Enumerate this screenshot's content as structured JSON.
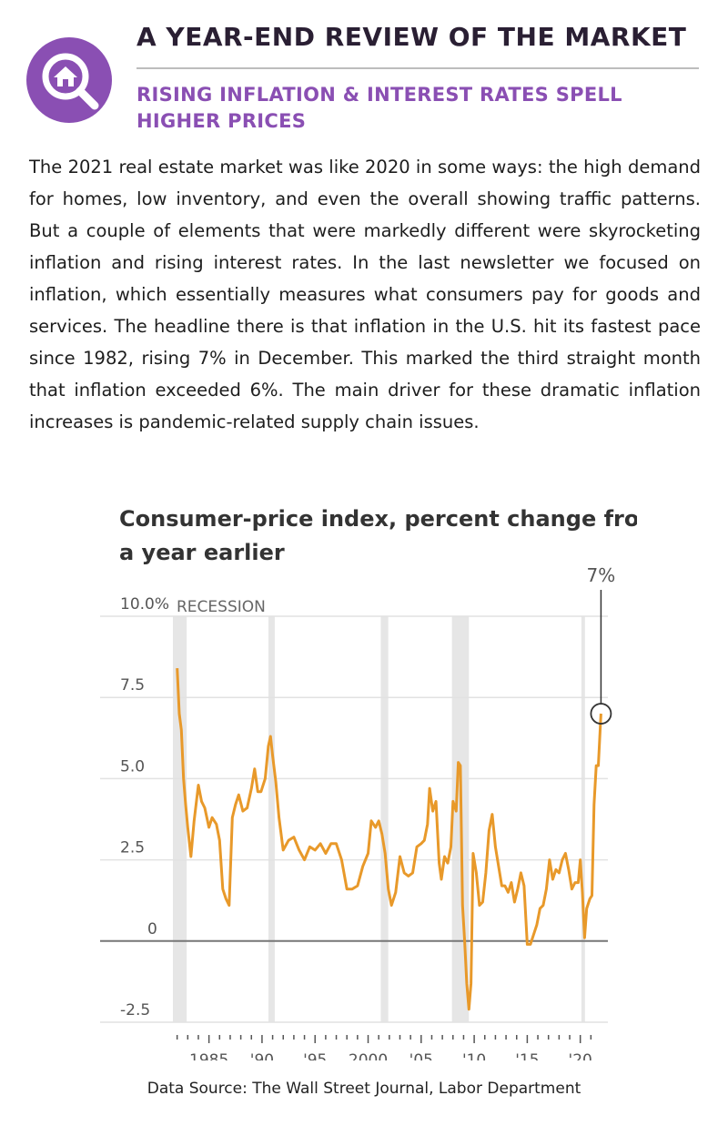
{
  "header": {
    "title": "A YEAR-END REVIEW OF THE MARKET",
    "subtitle": "RISING INFLATION & INTEREST RATES SPELL HIGHER PRICES",
    "logo_icon": "house-magnifier-icon",
    "accent_color": "#8a4fb3"
  },
  "body": {
    "paragraph": "The 2021 real estate market was like 2020 in some ways: the high demand for homes, low inventory, and even the overall showing traffic patterns. But a couple of elements that were markedly different were skyrocketing inflation and rising interest rates. In the last newsletter we focused on inflation, which essentially measures what consumers pay for goods and services. The headline there is that inflation in the U.S. hit its fastest pace since 1982, rising 7% in December. This marked the third straight month that inflation exceeded 6%. The main driver for these dramatic inflation increases is pandemic-related supply chain issues."
  },
  "chart_data": {
    "type": "line",
    "title_lines": [
      "Consumer-price index, percent change from",
      "a year earlier"
    ],
    "xlabel": "",
    "ylabel": "",
    "xlim": [
      1981.6,
      2022.6
    ],
    "ylim": [
      -2.5,
      10.0
    ],
    "y_ticks": [
      {
        "value": 10.0,
        "label": "10.0%"
      },
      {
        "value": 7.5,
        "label": "7.5"
      },
      {
        "value": 5.0,
        "label": "5.0"
      },
      {
        "value": 2.5,
        "label": "2.5"
      },
      {
        "value": 0,
        "label": "0"
      },
      {
        "value": -2.5,
        "label": "-2.5"
      }
    ],
    "x_ticks": [
      {
        "value": 1985,
        "label": "1985"
      },
      {
        "value": 1990,
        "label": "'90"
      },
      {
        "value": 1995,
        "label": "'95"
      },
      {
        "value": 2000,
        "label": "2000"
      },
      {
        "value": 2005,
        "label": "'05"
      },
      {
        "value": 2010,
        "label": "'10"
      },
      {
        "value": 2015,
        "label": "'15"
      },
      {
        "value": 2020,
        "label": "'20"
      }
    ],
    "grid": true,
    "recession_label": "RECESSION",
    "recessions": [
      [
        1981.6,
        1982.9
      ],
      [
        1990.6,
        1991.2
      ],
      [
        2001.2,
        2001.9
      ],
      [
        2007.9,
        2009.5
      ],
      [
        2020.1,
        2020.4
      ]
    ],
    "annotation": {
      "x": 2021.95,
      "y": 7.0,
      "label": "7%"
    },
    "series": [
      {
        "color": "#e8992a",
        "x": [
          1982.0,
          1982.2,
          1982.4,
          1982.6,
          1982.8,
          1983.0,
          1983.3,
          1983.6,
          1984.0,
          1984.3,
          1984.6,
          1985.0,
          1985.3,
          1985.7,
          1986.0,
          1986.3,
          1986.6,
          1986.9,
          1987.2,
          1987.5,
          1987.8,
          1988.2,
          1988.6,
          1989.0,
          1989.3,
          1989.6,
          1989.9,
          1990.3,
          1990.6,
          1990.8,
          1991.0,
          1991.3,
          1991.6,
          1992.0,
          1992.5,
          1993.0,
          1993.5,
          1994.0,
          1994.5,
          1995.0,
          1995.5,
          1996.0,
          1996.5,
          1997.0,
          1997.5,
          1998.0,
          1998.5,
          1999.0,
          1999.5,
          2000.0,
          2000.3,
          2000.7,
          2001.0,
          2001.3,
          2001.6,
          2001.9,
          2002.2,
          2002.6,
          2003.0,
          2003.4,
          2003.8,
          2004.2,
          2004.6,
          2005.0,
          2005.3,
          2005.6,
          2005.8,
          2006.1,
          2006.4,
          2006.7,
          2006.9,
          2007.2,
          2007.5,
          2007.8,
          2008.0,
          2008.3,
          2008.5,
          2008.7,
          2008.9,
          2009.1,
          2009.3,
          2009.5,
          2009.7,
          2009.9,
          2010.2,
          2010.5,
          2010.8,
          2011.1,
          2011.4,
          2011.7,
          2012.0,
          2012.3,
          2012.6,
          2012.9,
          2013.2,
          2013.5,
          2013.8,
          2014.1,
          2014.4,
          2014.7,
          2015.0,
          2015.3,
          2015.6,
          2015.9,
          2016.2,
          2016.5,
          2016.8,
          2017.1,
          2017.4,
          2017.7,
          2018.0,
          2018.3,
          2018.6,
          2018.9,
          2019.2,
          2019.5,
          2019.8,
          2020.0,
          2020.2,
          2020.4,
          2020.6,
          2020.9,
          2021.1,
          2021.3,
          2021.5,
          2021.7,
          2021.95
        ],
        "y": [
          8.4,
          7.0,
          6.5,
          5.0,
          4.2,
          3.5,
          2.6,
          3.7,
          4.8,
          4.3,
          4.1,
          3.5,
          3.8,
          3.6,
          3.1,
          1.6,
          1.3,
          1.1,
          3.8,
          4.2,
          4.5,
          4.0,
          4.1,
          4.7,
          5.3,
          4.6,
          4.6,
          5.0,
          6.0,
          6.3,
          5.7,
          4.9,
          3.8,
          2.8,
          3.1,
          3.2,
          2.8,
          2.5,
          2.9,
          2.8,
          3.0,
          2.7,
          3.0,
          3.0,
          2.5,
          1.6,
          1.6,
          1.7,
          2.3,
          2.7,
          3.7,
          3.5,
          3.7,
          3.3,
          2.7,
          1.6,
          1.1,
          1.5,
          2.6,
          2.1,
          2.0,
          2.1,
          2.9,
          3.0,
          3.1,
          3.6,
          4.7,
          4.0,
          4.3,
          2.4,
          1.9,
          2.6,
          2.4,
          2.9,
          4.3,
          4.0,
          5.5,
          5.4,
          1.1,
          0.0,
          -1.3,
          -2.1,
          -1.3,
          2.7,
          2.1,
          1.1,
          1.2,
          2.1,
          3.4,
          3.9,
          2.9,
          2.3,
          1.7,
          1.7,
          1.5,
          1.8,
          1.2,
          1.6,
          2.1,
          1.7,
          -0.1,
          -0.1,
          0.2,
          0.5,
          1.0,
          1.1,
          1.6,
          2.5,
          1.9,
          2.2,
          2.1,
          2.5,
          2.7,
          2.2,
          1.6,
          1.8,
          1.8,
          2.5,
          1.5,
          0.1,
          1.0,
          1.3,
          1.4,
          4.2,
          5.4,
          5.4,
          7.0
        ]
      }
    ]
  },
  "footer": {
    "source": "Data Source: The Wall Street Journal, Labor Department"
  }
}
